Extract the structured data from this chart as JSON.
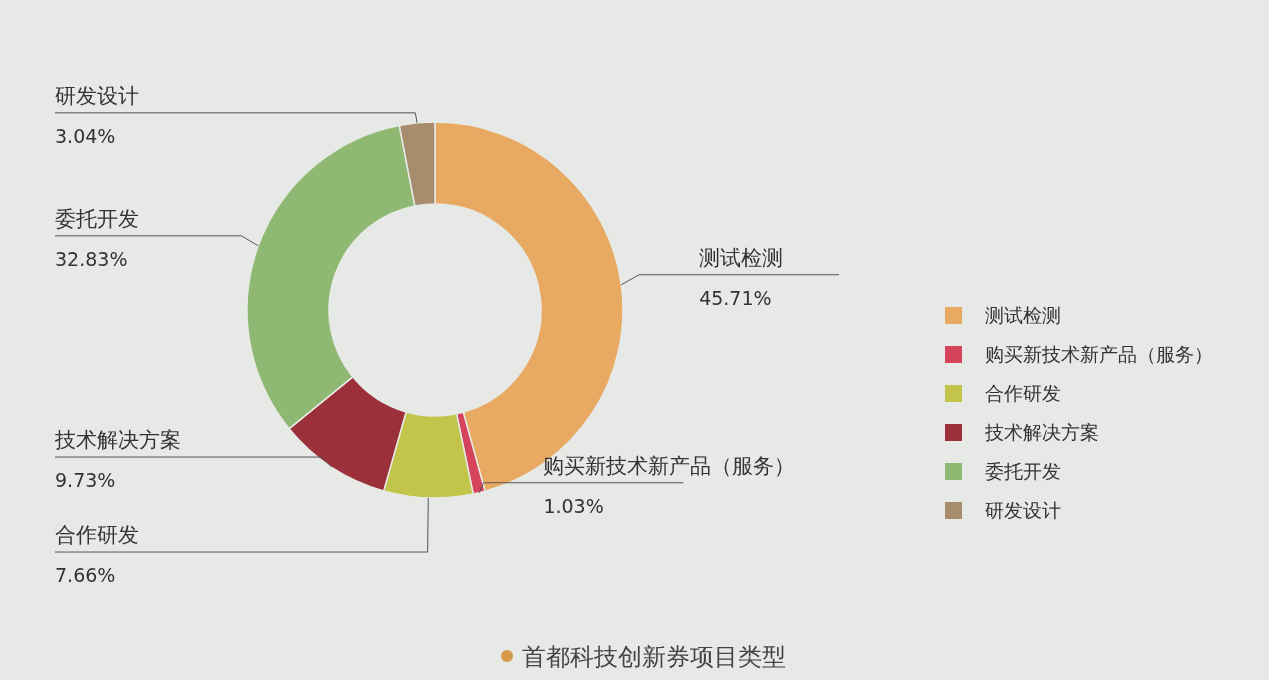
{
  "chart_data": {
    "type": "donut",
    "title": "首都科技创新券项目类型",
    "categories": [
      "测试检测",
      "购买新技术新产品（服务）",
      "合作研发",
      "技术解决方案",
      "委托开发",
      "研发设计"
    ],
    "values": [
      45.71,
      1.03,
      7.66,
      9.73,
      32.83,
      3.04
    ],
    "value_labels": [
      "45.71%",
      "1.03%",
      "7.66%",
      "9.73%",
      "32.83%",
      "3.04%"
    ],
    "colors": [
      "#e8aa62",
      "#d6445c",
      "#c3c54a",
      "#9b2f3a",
      "#8fb972",
      "#a88c6e"
    ],
    "legend": "right"
  }
}
